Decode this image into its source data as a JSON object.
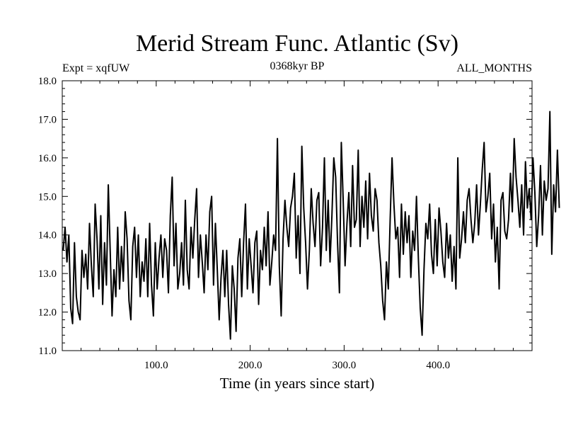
{
  "chart_data": {
    "type": "line",
    "title": "Merid Stream Func. Atlantic (Sv)",
    "subtitle": "0368kyr BP",
    "left_label": "Expt = xqfUW",
    "right_label": "ALL_MONTHS",
    "xlabel": "Time (in years since start)",
    "ylabel": "",
    "xlim": [
      0,
      500
    ],
    "ylim": [
      11.0,
      18.0
    ],
    "x_ticks": [
      100,
      200,
      300,
      400
    ],
    "x_tick_labels": [
      "100.0",
      "200.0",
      "300.0",
      "400.0"
    ],
    "y_ticks": [
      11,
      12,
      13,
      14,
      15,
      16,
      17,
      18
    ],
    "y_tick_labels": [
      "11.0",
      "12.0",
      "13.0",
      "14.0",
      "15.0",
      "16.0",
      "17.0",
      "18.0"
    ],
    "series": [
      {
        "name": "Merid Stream Func. Atlantic",
        "color": "#000000",
        "x_start": 1,
        "x_step": 2,
        "values": [
          13.6,
          14.2,
          13.3,
          14.0,
          12.1,
          11.7,
          13.8,
          12.4,
          12.0,
          11.8,
          13.6,
          12.9,
          13.5,
          12.6,
          14.3,
          13.2,
          12.4,
          14.8,
          13.9,
          12.6,
          14.5,
          12.2,
          13.8,
          12.7,
          15.3,
          13.6,
          11.9,
          13.1,
          12.4,
          14.2,
          12.6,
          13.7,
          12.8,
          14.6,
          13.9,
          12.3,
          11.8,
          13.7,
          14.2,
          12.9,
          14.0,
          12.4,
          13.3,
          12.8,
          13.9,
          12.4,
          14.3,
          12.7,
          11.9,
          13.8,
          12.6,
          13.4,
          14.0,
          12.9,
          13.9,
          13.6,
          12.5,
          14.5,
          15.5,
          13.2,
          14.3,
          12.6,
          13.0,
          13.8,
          12.7,
          14.9,
          13.1,
          12.6,
          14.2,
          13.4,
          14.4,
          15.2,
          12.9,
          14.0,
          13.3,
          12.5,
          14.0,
          13.1,
          14.6,
          15.0,
          12.7,
          14.3,
          13.1,
          11.8,
          12.9,
          13.6,
          12.4,
          13.6,
          12.2,
          11.3,
          13.2,
          12.6,
          11.5,
          13.4,
          13.9,
          12.4,
          13.8,
          14.8,
          12.6,
          13.9,
          13.2,
          12.5,
          13.8,
          14.1,
          12.2,
          13.6,
          13.1,
          14.2,
          13.2,
          14.6,
          12.7,
          13.3,
          14.0,
          13.6,
          16.5,
          13.2,
          11.9,
          13.9,
          14.9,
          14.2,
          13.7,
          14.7,
          15.0,
          15.6,
          13.4,
          14.5,
          13.0,
          16.3,
          14.7,
          13.8,
          12.6,
          13.6,
          15.2,
          14.3,
          13.7,
          14.9,
          15.1,
          13.2,
          14.2,
          16.0,
          13.6,
          14.9,
          13.3,
          14.5,
          16.0,
          15.5,
          13.8,
          12.5,
          16.4,
          14.9,
          13.2,
          14.3,
          15.1,
          13.7,
          15.8,
          14.2,
          14.4,
          16.2,
          13.7,
          15.0,
          14.2,
          15.4,
          13.9,
          15.6,
          14.5,
          14.1,
          15.2,
          14.9,
          13.8,
          13.2,
          12.3,
          11.8,
          13.3,
          12.6,
          14.4,
          16.0,
          14.8,
          13.9,
          14.2,
          12.9,
          14.8,
          13.5,
          14.6,
          13.8,
          14.5,
          12.9,
          14.1,
          13.6,
          15.0,
          13.4,
          12.1,
          11.4,
          13.1,
          14.3,
          13.9,
          14.8,
          13.5,
          13.0,
          14.4,
          13.2,
          14.7,
          14.1,
          13.3,
          12.9,
          14.3,
          13.4,
          14.0,
          12.8,
          13.7,
          12.6,
          16.0,
          13.4,
          13.9,
          14.6,
          13.8,
          14.9,
          15.2,
          14.4,
          13.8,
          14.3,
          15.3,
          14.0,
          14.8,
          15.7,
          16.4,
          14.6,
          15.0,
          15.6,
          13.9,
          14.8,
          13.3,
          14.2,
          12.6,
          14.9,
          15.1,
          14.1,
          13.9,
          14.4,
          15.6,
          14.6,
          16.5,
          15.5,
          14.9,
          14.2,
          15.3,
          14.0,
          15.9,
          14.7,
          15.2,
          14.4,
          16.0,
          15.1,
          13.7,
          14.5,
          15.8,
          14.0,
          15.4,
          14.9,
          15.2,
          17.2,
          13.5,
          15.3,
          14.6,
          16.2,
          14.7
        ]
      }
    ]
  }
}
